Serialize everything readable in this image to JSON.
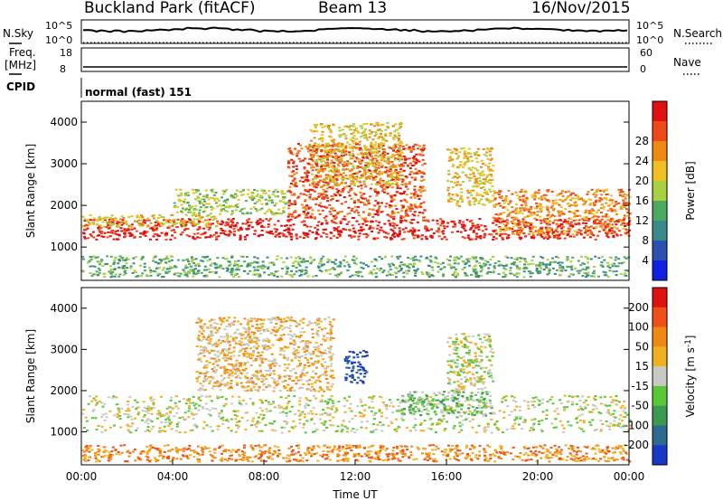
{
  "header": {
    "station": "Buckland Park (fitACF)",
    "beam": "Beam 13",
    "date": "16/Nov/2015"
  },
  "status_panels": {
    "nsky_label": "N.Sky",
    "nsky_ticks": [
      "10^5",
      "10^0"
    ],
    "nsearch_label": "N.Search",
    "nsearch_ticks": [
      "10^5",
      "10^0"
    ],
    "freq_label": "Freq.",
    "freq_unit": "[MHz]",
    "freq_ticks": [
      "18",
      "8"
    ],
    "nave_label": "Nave",
    "nave_ticks": [
      "60",
      "0"
    ],
    "cpid_label": "CPID",
    "cpid_value": "normal (fast) 151"
  },
  "chart_data": [
    {
      "type": "heatmap",
      "name": "power-panel",
      "ylabel": "Slant Range [km]",
      "xlabel": "",
      "ylim": [
        200,
        4500
      ],
      "xlim": [
        0,
        24
      ],
      "yticks": [
        1000,
        2000,
        3000,
        4000
      ],
      "colorbar_label": "Power [dB]",
      "colorbar_ticks": [
        "4",
        "8",
        "12",
        "16",
        "20",
        "24",
        "28"
      ],
      "colorbar_colors": [
        "#1020e0",
        "#2a50b0",
        "#3a8a8a",
        "#4caa60",
        "#a8d040",
        "#f0c020",
        "#f08818",
        "#f04818",
        "#e01010"
      ],
      "features": [
        {
          "range_start": 1200,
          "range_end": 1700,
          "t_start": 0,
          "t_end": 24,
          "level": 8
        },
        {
          "range_start": 1500,
          "range_end": 1800,
          "t_start": 0,
          "t_end": 6,
          "level": 5
        },
        {
          "range_start": 1800,
          "range_end": 2400,
          "t_start": 4,
          "t_end": 9,
          "level": 4
        },
        {
          "range_start": 1700,
          "range_end": 3500,
          "t_start": 9,
          "t_end": 15,
          "level": 7
        },
        {
          "range_start": 2500,
          "range_end": 4000,
          "t_start": 10,
          "t_end": 14,
          "level": 5
        },
        {
          "range_start": 2000,
          "range_end": 3400,
          "t_start": 16,
          "t_end": 18,
          "level": 5
        },
        {
          "range_start": 1300,
          "range_end": 2400,
          "t_start": 18,
          "t_end": 24,
          "level": 6
        },
        {
          "range_start": 300,
          "range_end": 800,
          "t_start": 0,
          "t_end": 24,
          "level": 3
        }
      ]
    },
    {
      "type": "heatmap",
      "name": "velocity-panel",
      "ylabel": "Slant Range [km]",
      "xlabel": "Time UT",
      "ylim": [
        200,
        4500
      ],
      "xlim": [
        0,
        24
      ],
      "yticks": [
        1000,
        2000,
        3000,
        4000
      ],
      "xticks": [
        "00:00",
        "04:00",
        "08:00",
        "12:00",
        "16:00",
        "20:00",
        "00:00"
      ],
      "colorbar_label": "Velocity [m s^-1]",
      "colorbar_ticks": [
        "200",
        "100",
        "50",
        "15",
        "-15",
        "-50",
        "-100",
        "-200"
      ],
      "colorbar_colors": [
        "#1838c8",
        "#2c6a90",
        "#3a9a50",
        "#58c838",
        "#c8c8c4",
        "#f0b020",
        "#f08818",
        "#f05018",
        "#e01010"
      ],
      "features": [
        {
          "range_start": 1000,
          "range_end": 1900,
          "t_start": 0,
          "t_end": 24,
          "level": 4
        },
        {
          "range_start": 2000,
          "range_end": 3800,
          "t_start": 5,
          "t_end": 11,
          "level": 5
        },
        {
          "range_start": 2200,
          "range_end": 3000,
          "t_start": 11.5,
          "t_end": 12.5,
          "level": 0
        },
        {
          "range_start": 1400,
          "range_end": 2000,
          "t_start": 14,
          "t_end": 18,
          "level": 3
        },
        {
          "range_start": 2000,
          "range_end": 3400,
          "t_start": 16,
          "t_end": 18,
          "level": 4
        },
        {
          "range_start": 300,
          "range_end": 700,
          "t_start": 0,
          "t_end": 24,
          "level": 6
        }
      ]
    }
  ]
}
